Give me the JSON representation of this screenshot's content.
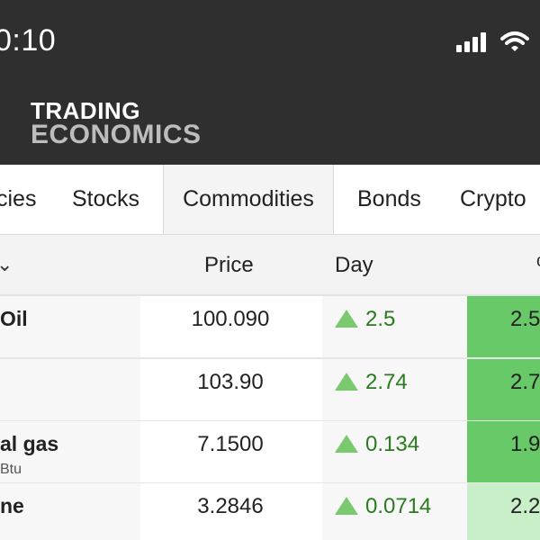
{
  "status": {
    "time": "0:10"
  },
  "app": {
    "logo_line1": "TRADING",
    "logo_line2": "ECONOMICS"
  },
  "tabs": [
    {
      "label": "cies"
    },
    {
      "label": "Stocks"
    },
    {
      "label": "Commodities"
    },
    {
      "label": "Bonds"
    },
    {
      "label": "Crypto"
    }
  ],
  "table": {
    "headers": {
      "sort_symbol": "⌄",
      "price": "Price",
      "day": "Day",
      "pct": "%"
    },
    "rows": [
      {
        "name": "Oil",
        "unit": "",
        "price": "100.090",
        "day": "2.5",
        "pct": "2.5",
        "pct_style": "strong"
      },
      {
        "name": "",
        "unit": "",
        "price": "103.90",
        "day": "2.74",
        "pct": "2.7",
        "pct_style": "strong"
      },
      {
        "name": "al gas",
        "unit": "Btu",
        "price": "7.1500",
        "day": "0.134",
        "pct": "1.9",
        "pct_style": "strong"
      },
      {
        "name": "ne",
        "unit": "",
        "price": "3.2846",
        "day": "0.0714",
        "pct": "2.2",
        "pct_style": "light"
      }
    ]
  },
  "colors": {
    "header_bg": "#2f2f2f",
    "up_green": "#7bc96f",
    "up_text": "#2a7a1f",
    "pct_strong": "#67c967",
    "pct_light": "#c9efc9"
  },
  "icons": [
    "cellular-signal-icon",
    "wifi-icon",
    "up-triangle-icon"
  ]
}
